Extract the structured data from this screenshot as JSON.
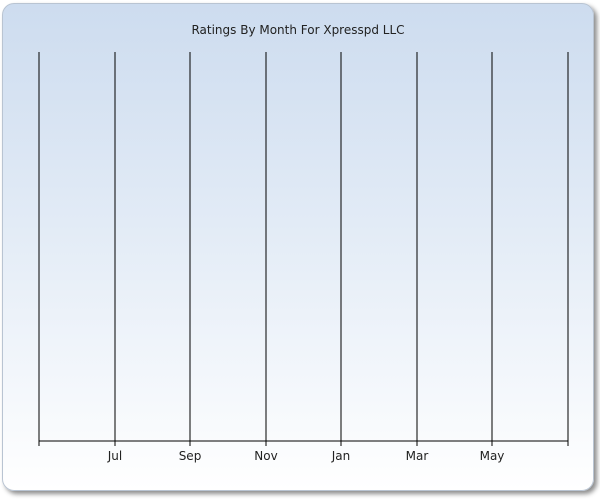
{
  "chart_data": {
    "type": "bar",
    "title": "Ratings By Month For Xpresspd LLC",
    "xlabel": "",
    "ylabel": "",
    "categories": [
      "Jul",
      "Sep",
      "Nov",
      "Jan",
      "Mar",
      "May"
    ],
    "series": [],
    "grid": true,
    "legend": "none"
  }
}
